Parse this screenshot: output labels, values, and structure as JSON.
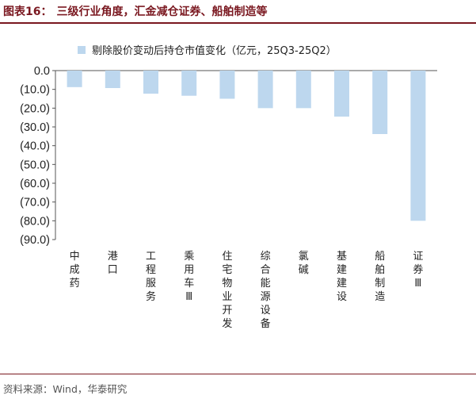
{
  "header": {
    "figure_no": "图表16：",
    "title": "三级行业角度，汇金减仓证券、船舶制造等"
  },
  "footer": {
    "source": "资料来源：Wind，华泰研究"
  },
  "chart_data": {
    "type": "bar",
    "categories": [
      "中成药",
      "港口",
      "工程服务",
      "乘用车Ⅲ",
      "住宅物业开发",
      "综合能源设备",
      "氯碱",
      "基建建设",
      "船舶制造",
      "证券Ⅲ"
    ],
    "series": [
      {
        "name": "剔除股价变动后持仓市值变化（亿元，25Q3-25Q2）",
        "values": [
          -8.8,
          -9.3,
          -12.3,
          -13.4,
          -15.0,
          -20.0,
          -20.0,
          -24.5,
          -33.8,
          -80.0
        ],
        "color": "#bdd7ee"
      }
    ],
    "y_ticks": [
      "0.0",
      "(10.0)",
      "(20.0)",
      "(30.0)",
      "(40.0)",
      "(50.0)",
      "(60.0)",
      "(70.0)",
      "(80.0)",
      "(90.0)"
    ],
    "ylim": [
      -90,
      0
    ],
    "legend_position": "top",
    "grid": false
  }
}
